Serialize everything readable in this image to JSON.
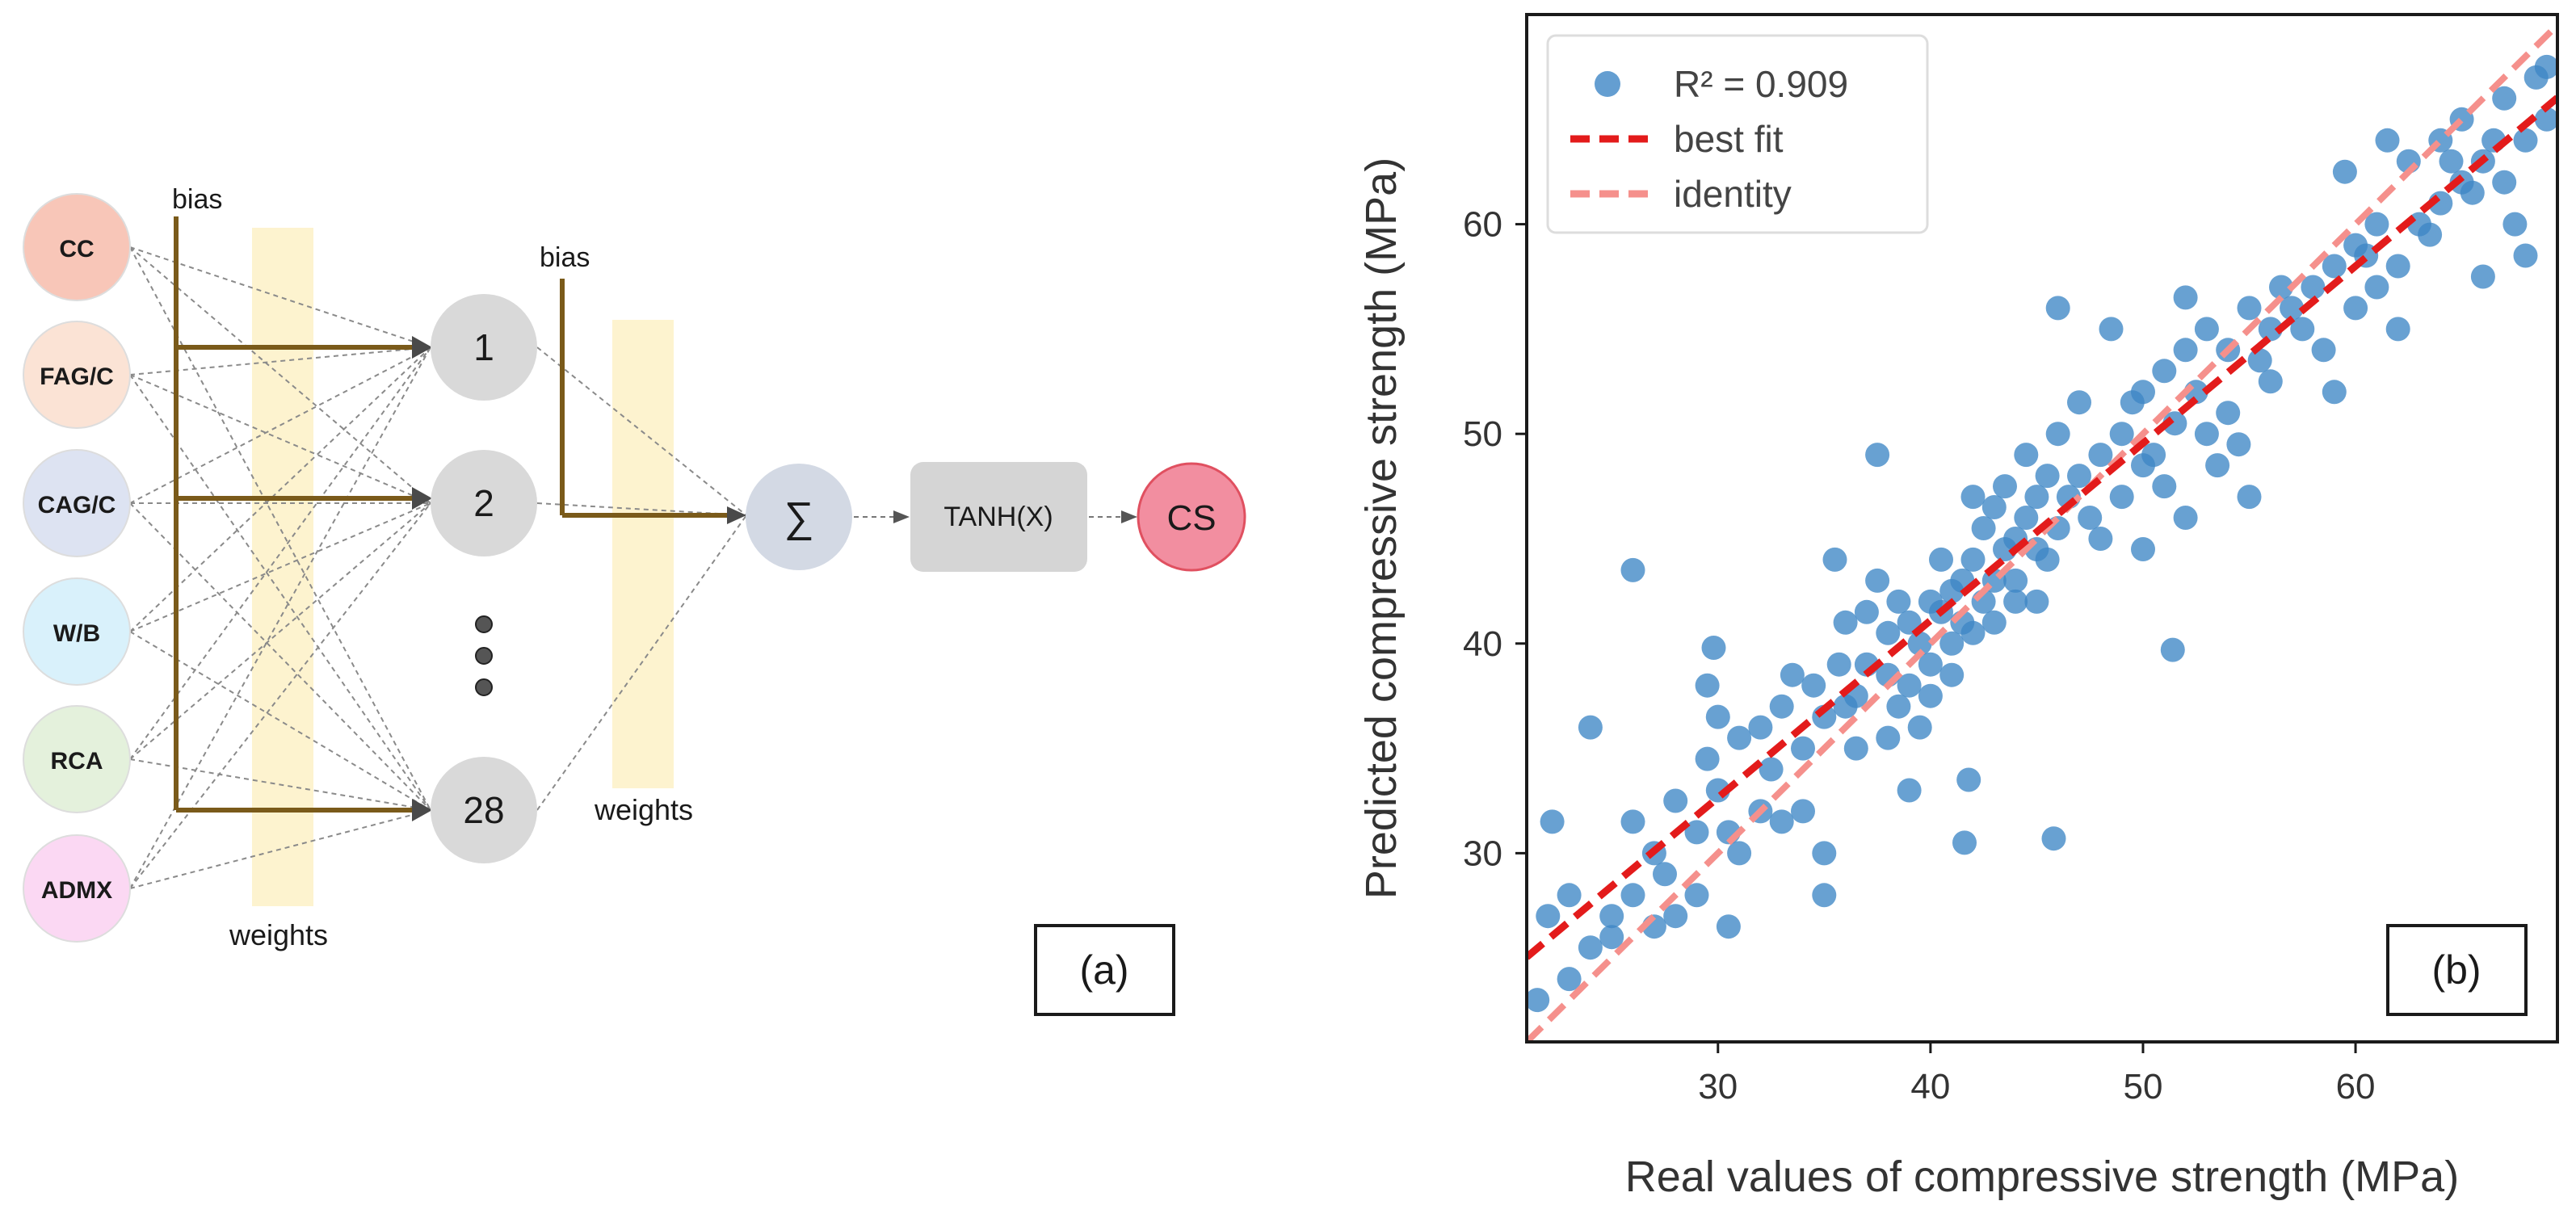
{
  "panel_a": {
    "inputs": [
      {
        "label": "CC",
        "color": "#f8c6b8"
      },
      {
        "label": "FAG/C",
        "color": "#fbe3d5"
      },
      {
        "label": "CAG/C",
        "color": "#dde3f2"
      },
      {
        "label": "W/B",
        "color": "#d9f1fb"
      },
      {
        "label": "RCA",
        "color": "#e4f1dc"
      },
      {
        "label": "ADMX",
        "color": "#fbd8f3"
      }
    ],
    "hidden": [
      "1",
      "2",
      "28"
    ],
    "bias_label_1": "bias",
    "bias_label_2": "bias",
    "weights_label_1": "weights",
    "weights_label_2": "weights",
    "sum_symbol": "∑",
    "activation": "TANH(X)",
    "output": "CS",
    "panel_label": "(a)",
    "colors": {
      "bias": "#7a5a1a",
      "weights_band": "#fdf3cf",
      "node": "#d9d9d9",
      "sum": "#d3d9e4",
      "activation": "#d5d5d5",
      "output": "#f28ea0",
      "output_border": "#e05060"
    }
  },
  "panel_b": {
    "panel_label": "(b)",
    "chart_data": {
      "type": "scatter",
      "title": "",
      "xlabel": "Real values of compressive strength (MPa)",
      "ylabel": "Predicted compressive strength (MPa)",
      "xlim": [
        21,
        69.5
      ],
      "ylim": [
        21,
        70
      ],
      "xticks": [
        30,
        40,
        50,
        60
      ],
      "yticks": [
        30,
        40,
        50,
        60
      ],
      "legend_position": "top-left",
      "legend": [
        {
          "label": "R²  = 0.909",
          "kind": "point",
          "color": "#3d86c5"
        },
        {
          "label": "best fit",
          "kind": "dashed-line",
          "color": "#e31b1b"
        },
        {
          "label": "identity",
          "kind": "dashed-line",
          "color": "#f5908c"
        }
      ],
      "best_fit": {
        "slope": 0.845,
        "intercept": 7.3
      },
      "identity": {
        "slope": 1,
        "intercept": 0
      },
      "series": [
        {
          "name": "predictions",
          "color": "#3d86c5",
          "points": [
            [
              21.5,
              23
            ],
            [
              22,
              27
            ],
            [
              22.2,
              31.5
            ],
            [
              23,
              24
            ],
            [
              23,
              28
            ],
            [
              24,
              25.5
            ],
            [
              24,
              36
            ],
            [
              25,
              26
            ],
            [
              25,
              27
            ],
            [
              26,
              28
            ],
            [
              26,
              31.5
            ],
            [
              26,
              43.5
            ],
            [
              27,
              26.5
            ],
            [
              27,
              30
            ],
            [
              27.5,
              29
            ],
            [
              28,
              32.5
            ],
            [
              28,
              27
            ],
            [
              29,
              31
            ],
            [
              29,
              28
            ],
            [
              29.5,
              34.5
            ],
            [
              29.5,
              38
            ],
            [
              29.8,
              39.8
            ],
            [
              30,
              36.5
            ],
            [
              30,
              33
            ],
            [
              30.5,
              31
            ],
            [
              30.5,
              26.5
            ],
            [
              31,
              35.5
            ],
            [
              31,
              30
            ],
            [
              32,
              32
            ],
            [
              32,
              36
            ],
            [
              32.5,
              34
            ],
            [
              33,
              37
            ],
            [
              33,
              31.5
            ],
            [
              33.5,
              38.5
            ],
            [
              34,
              35
            ],
            [
              34,
              32
            ],
            [
              34.5,
              38
            ],
            [
              35,
              36.5
            ],
            [
              35,
              30
            ],
            [
              35,
              28
            ],
            [
              35.5,
              44
            ],
            [
              35.7,
              39
            ],
            [
              36,
              37
            ],
            [
              36,
              41
            ],
            [
              36.5,
              37.5
            ],
            [
              36.5,
              35
            ],
            [
              37,
              39
            ],
            [
              37,
              41.5
            ],
            [
              37.5,
              49
            ],
            [
              37.5,
              43
            ],
            [
              38,
              38.5
            ],
            [
              38,
              40.5
            ],
            [
              38,
              35.5
            ],
            [
              38.5,
              37
            ],
            [
              38.5,
              42
            ],
            [
              39,
              38
            ],
            [
              39,
              41
            ],
            [
              39,
              33
            ],
            [
              39.5,
              36
            ],
            [
              39.5,
              40
            ],
            [
              40,
              39
            ],
            [
              40,
              42
            ],
            [
              40,
              37.5
            ],
            [
              40.5,
              41.5
            ],
            [
              40.5,
              44
            ],
            [
              41,
              40
            ],
            [
              41,
              42.5
            ],
            [
              41,
              38.5
            ],
            [
              41.5,
              43
            ],
            [
              41.5,
              41
            ],
            [
              41.6,
              30.5
            ],
            [
              41.8,
              33.5
            ],
            [
              42,
              44
            ],
            [
              42,
              40.5
            ],
            [
              42,
              47
            ],
            [
              42.5,
              42
            ],
            [
              42.5,
              45.5
            ],
            [
              43,
              43
            ],
            [
              43,
              41
            ],
            [
              43,
              46.5
            ],
            [
              43.5,
              44.5
            ],
            [
              43.5,
              47.5
            ],
            [
              44,
              45
            ],
            [
              44,
              43
            ],
            [
              44,
              42
            ],
            [
              44.5,
              46
            ],
            [
              44.5,
              49
            ],
            [
              45,
              44.5
            ],
            [
              45,
              47
            ],
            [
              45,
              42
            ],
            [
              45.5,
              48
            ],
            [
              45.5,
              44
            ],
            [
              45.8,
              30.7
            ],
            [
              46,
              56
            ],
            [
              46,
              50
            ],
            [
              46,
              45.5
            ],
            [
              46.5,
              47
            ],
            [
              47,
              48
            ],
            [
              47,
              51.5
            ],
            [
              47.5,
              46
            ],
            [
              48,
              49
            ],
            [
              48,
              45
            ],
            [
              48.5,
              55
            ],
            [
              49,
              50
            ],
            [
              49,
              47
            ],
            [
              49.5,
              51.5
            ],
            [
              50,
              48.5
            ],
            [
              50,
              52
            ],
            [
              50,
              44.5
            ],
            [
              50.5,
              49
            ],
            [
              51,
              47.5
            ],
            [
              51,
              53
            ],
            [
              51.4,
              39.7
            ],
            [
              51.5,
              50.5
            ],
            [
              52,
              54
            ],
            [
              52,
              46
            ],
            [
              52,
              56.5
            ],
            [
              52.5,
              52
            ],
            [
              53,
              50
            ],
            [
              53,
              55
            ],
            [
              53.5,
              48.5
            ],
            [
              54,
              54
            ],
            [
              54,
              51
            ],
            [
              54.5,
              49.5
            ],
            [
              55,
              56
            ],
            [
              55,
              47
            ],
            [
              55.5,
              53.5
            ],
            [
              56,
              55
            ],
            [
              56,
              52.5
            ],
            [
              56.5,
              57
            ],
            [
              57,
              56
            ],
            [
              57.5,
              55
            ],
            [
              58,
              57
            ],
            [
              58.5,
              54
            ],
            [
              59,
              52
            ],
            [
              59,
              58
            ],
            [
              59.5,
              62.5
            ],
            [
              60,
              56
            ],
            [
              60,
              59
            ],
            [
              60.5,
              58.5
            ],
            [
              61,
              60
            ],
            [
              61,
              57
            ],
            [
              61.5,
              64
            ],
            [
              62,
              58
            ],
            [
              62,
              55
            ],
            [
              62.5,
              63
            ],
            [
              63,
              60
            ],
            [
              63.5,
              59.5
            ],
            [
              64,
              64
            ],
            [
              64,
              61
            ],
            [
              64.5,
              63
            ],
            [
              65,
              65
            ],
            [
              65,
              62
            ],
            [
              65.5,
              61.5
            ],
            [
              66,
              57.5
            ],
            [
              66,
              63
            ],
            [
              66.5,
              64
            ],
            [
              67,
              62
            ],
            [
              67,
              66
            ],
            [
              67.5,
              60
            ],
            [
              68,
              58.5
            ],
            [
              68,
              64
            ],
            [
              68.5,
              67
            ],
            [
              69,
              67.5
            ],
            [
              69,
              65
            ]
          ]
        }
      ]
    }
  }
}
